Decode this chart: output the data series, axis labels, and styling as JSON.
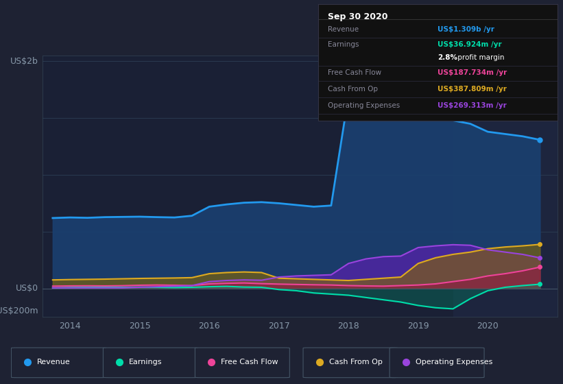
{
  "background_color": "#1e2233",
  "plot_bg_color": "#1a2035",
  "highlight_bg": "#202840",
  "colors": {
    "revenue": "#2299ee",
    "earnings": "#00ddaa",
    "free_cash_flow": "#ee4499",
    "cash_from_op": "#ddaa22",
    "operating_expenses": "#9944dd"
  },
  "ylabel_top": "US$2b",
  "ylabel_mid": "US$0",
  "ylabel_bot": "-US$200m",
  "x_points": [
    2013.75,
    2014.0,
    2014.25,
    2014.5,
    2014.75,
    2015.0,
    2015.25,
    2015.5,
    2015.75,
    2016.0,
    2016.25,
    2016.5,
    2016.75,
    2017.0,
    2017.25,
    2017.5,
    2017.75,
    2018.0,
    2018.25,
    2018.5,
    2018.75,
    2019.0,
    2019.25,
    2019.5,
    2019.75,
    2020.0,
    2020.25,
    2020.5,
    2020.75
  ],
  "revenue": [
    0.62,
    0.625,
    0.622,
    0.628,
    0.63,
    0.632,
    0.628,
    0.625,
    0.64,
    0.72,
    0.74,
    0.755,
    0.76,
    0.75,
    0.735,
    0.72,
    0.73,
    1.7,
    1.84,
    1.86,
    1.85,
    1.6,
    1.52,
    1.48,
    1.45,
    1.38,
    1.36,
    1.34,
    1.309
  ],
  "earnings": [
    0.005,
    0.008,
    0.01,
    0.012,
    0.01,
    0.012,
    0.01,
    0.008,
    0.01,
    0.015,
    0.018,
    0.012,
    0.01,
    -0.01,
    -0.02,
    -0.04,
    -0.05,
    -0.06,
    -0.08,
    -0.1,
    -0.12,
    -0.15,
    -0.17,
    -0.18,
    -0.09,
    -0.02,
    0.01,
    0.025,
    0.037
  ],
  "free_cash_flow": [
    0.02,
    0.022,
    0.023,
    0.022,
    0.024,
    0.028,
    0.03,
    0.028,
    0.025,
    0.04,
    0.045,
    0.048,
    0.042,
    0.038,
    0.035,
    0.032,
    0.03,
    0.025,
    0.022,
    0.02,
    0.025,
    0.03,
    0.04,
    0.06,
    0.08,
    0.11,
    0.13,
    0.155,
    0.188
  ],
  "cash_from_op": [
    0.075,
    0.078,
    0.08,
    0.082,
    0.085,
    0.088,
    0.09,
    0.092,
    0.095,
    0.13,
    0.14,
    0.145,
    0.14,
    0.09,
    0.085,
    0.08,
    0.075,
    0.07,
    0.08,
    0.09,
    0.1,
    0.22,
    0.27,
    0.3,
    0.32,
    0.35,
    0.365,
    0.375,
    0.388
  ],
  "operating_expenses": [
    0.005,
    0.005,
    0.005,
    0.005,
    0.005,
    0.01,
    0.015,
    0.02,
    0.025,
    0.06,
    0.07,
    0.075,
    0.072,
    0.1,
    0.11,
    0.115,
    0.12,
    0.22,
    0.26,
    0.28,
    0.285,
    0.36,
    0.375,
    0.385,
    0.38,
    0.34,
    0.32,
    0.3,
    0.269
  ],
  "ylim": [
    -0.25,
    2.05
  ],
  "xlim": [
    2013.6,
    2021.0
  ],
  "xticks": [
    2014,
    2015,
    2016,
    2017,
    2018,
    2019,
    2020
  ],
  "highlight_start": 2019.5,
  "info_box": {
    "date": "Sep 30 2020",
    "rows": [
      {
        "label": "Revenue",
        "value": "US$1.309b /yr",
        "color_key": "revenue"
      },
      {
        "label": "Earnings",
        "value": "US$36.924m /yr",
        "color_key": "earnings"
      },
      {
        "label": "",
        "value": "2.8% profit margin",
        "color_key": "white"
      },
      {
        "label": "Free Cash Flow",
        "value": "US$187.734m /yr",
        "color_key": "free_cash_flow"
      },
      {
        "label": "Cash From Op",
        "value": "US$387.809m /yr",
        "color_key": "cash_from_op"
      },
      {
        "label": "Operating Expenses",
        "value": "US$269.313m /yr",
        "color_key": "operating_expenses"
      }
    ]
  },
  "legend": [
    {
      "label": "Revenue",
      "color_key": "revenue"
    },
    {
      "label": "Earnings",
      "color_key": "earnings"
    },
    {
      "label": "Free Cash Flow",
      "color_key": "free_cash_flow"
    },
    {
      "label": "Cash From Op",
      "color_key": "cash_from_op"
    },
    {
      "label": "Operating Expenses",
      "color_key": "operating_expenses"
    }
  ]
}
